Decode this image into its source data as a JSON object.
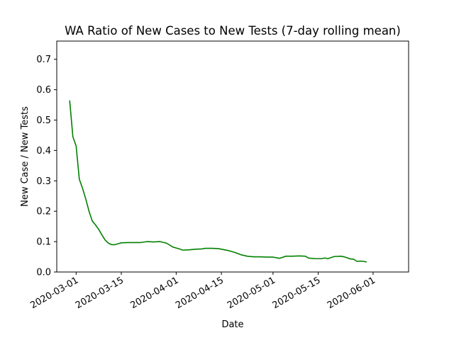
{
  "chart_data": {
    "type": "line",
    "title": "WA Ratio of New Cases to New Tests (7-day rolling mean)",
    "xlabel": "Date",
    "ylabel": "New Case / New Tests",
    "xlim": [
      "2020-02-24",
      "2020-06-12"
    ],
    "ylim": [
      0,
      0.76
    ],
    "x_ticks": [
      "2020-03-01",
      "2020-03-15",
      "2020-04-01",
      "2020-04-15",
      "2020-05-01",
      "2020-05-15",
      "2020-06-01"
    ],
    "y_ticks": [
      0.0,
      0.1,
      0.2,
      0.3,
      0.4,
      0.5,
      0.6,
      0.7
    ],
    "y_tick_labels": [
      "0.0",
      "0.1",
      "0.2",
      "0.3",
      "0.4",
      "0.5",
      "0.6",
      "0.7"
    ],
    "grid": false,
    "legend": "none",
    "series": [
      {
        "color": "#008000",
        "x": [
          "2020-02-28",
          "2020-02-29",
          "2020-03-01",
          "2020-03-02",
          "2020-03-03",
          "2020-03-04",
          "2020-03-05",
          "2020-03-06",
          "2020-03-07",
          "2020-03-08",
          "2020-03-09",
          "2020-03-10",
          "2020-03-11",
          "2020-03-12",
          "2020-03-13",
          "2020-03-14",
          "2020-03-15",
          "2020-03-17",
          "2020-03-19",
          "2020-03-21",
          "2020-03-23",
          "2020-03-25",
          "2020-03-27",
          "2020-03-29",
          "2020-03-31",
          "2020-04-01",
          "2020-04-02",
          "2020-04-03",
          "2020-04-05",
          "2020-04-07",
          "2020-04-09",
          "2020-04-10",
          "2020-04-12",
          "2020-04-14",
          "2020-04-15",
          "2020-04-17",
          "2020-04-19",
          "2020-04-21",
          "2020-04-23",
          "2020-04-25",
          "2020-04-27",
          "2020-04-29",
          "2020-05-01",
          "2020-05-03",
          "2020-05-05",
          "2020-05-07",
          "2020-05-09",
          "2020-05-11",
          "2020-05-12",
          "2020-05-14",
          "2020-05-16",
          "2020-05-17",
          "2020-05-18",
          "2020-05-20",
          "2020-05-22",
          "2020-05-23",
          "2020-05-25",
          "2020-05-26",
          "2020-05-27",
          "2020-05-28",
          "2020-05-29",
          "2020-05-30"
        ],
        "y": [
          0.565,
          0.445,
          0.415,
          0.305,
          0.275,
          0.24,
          0.2,
          0.168,
          0.155,
          0.14,
          0.122,
          0.105,
          0.095,
          0.09,
          0.09,
          0.093,
          0.096,
          0.097,
          0.097,
          0.097,
          0.1,
          0.099,
          0.1,
          0.095,
          0.082,
          0.079,
          0.076,
          0.072,
          0.073,
          0.075,
          0.076,
          0.078,
          0.078,
          0.077,
          0.075,
          0.071,
          0.065,
          0.057,
          0.052,
          0.05,
          0.05,
          0.049,
          0.049,
          0.045,
          0.052,
          0.052,
          0.053,
          0.052,
          0.046,
          0.044,
          0.044,
          0.046,
          0.044,
          0.051,
          0.052,
          0.05,
          0.043,
          0.042,
          0.035,
          0.036,
          0.035,
          0.033
        ]
      }
    ]
  }
}
